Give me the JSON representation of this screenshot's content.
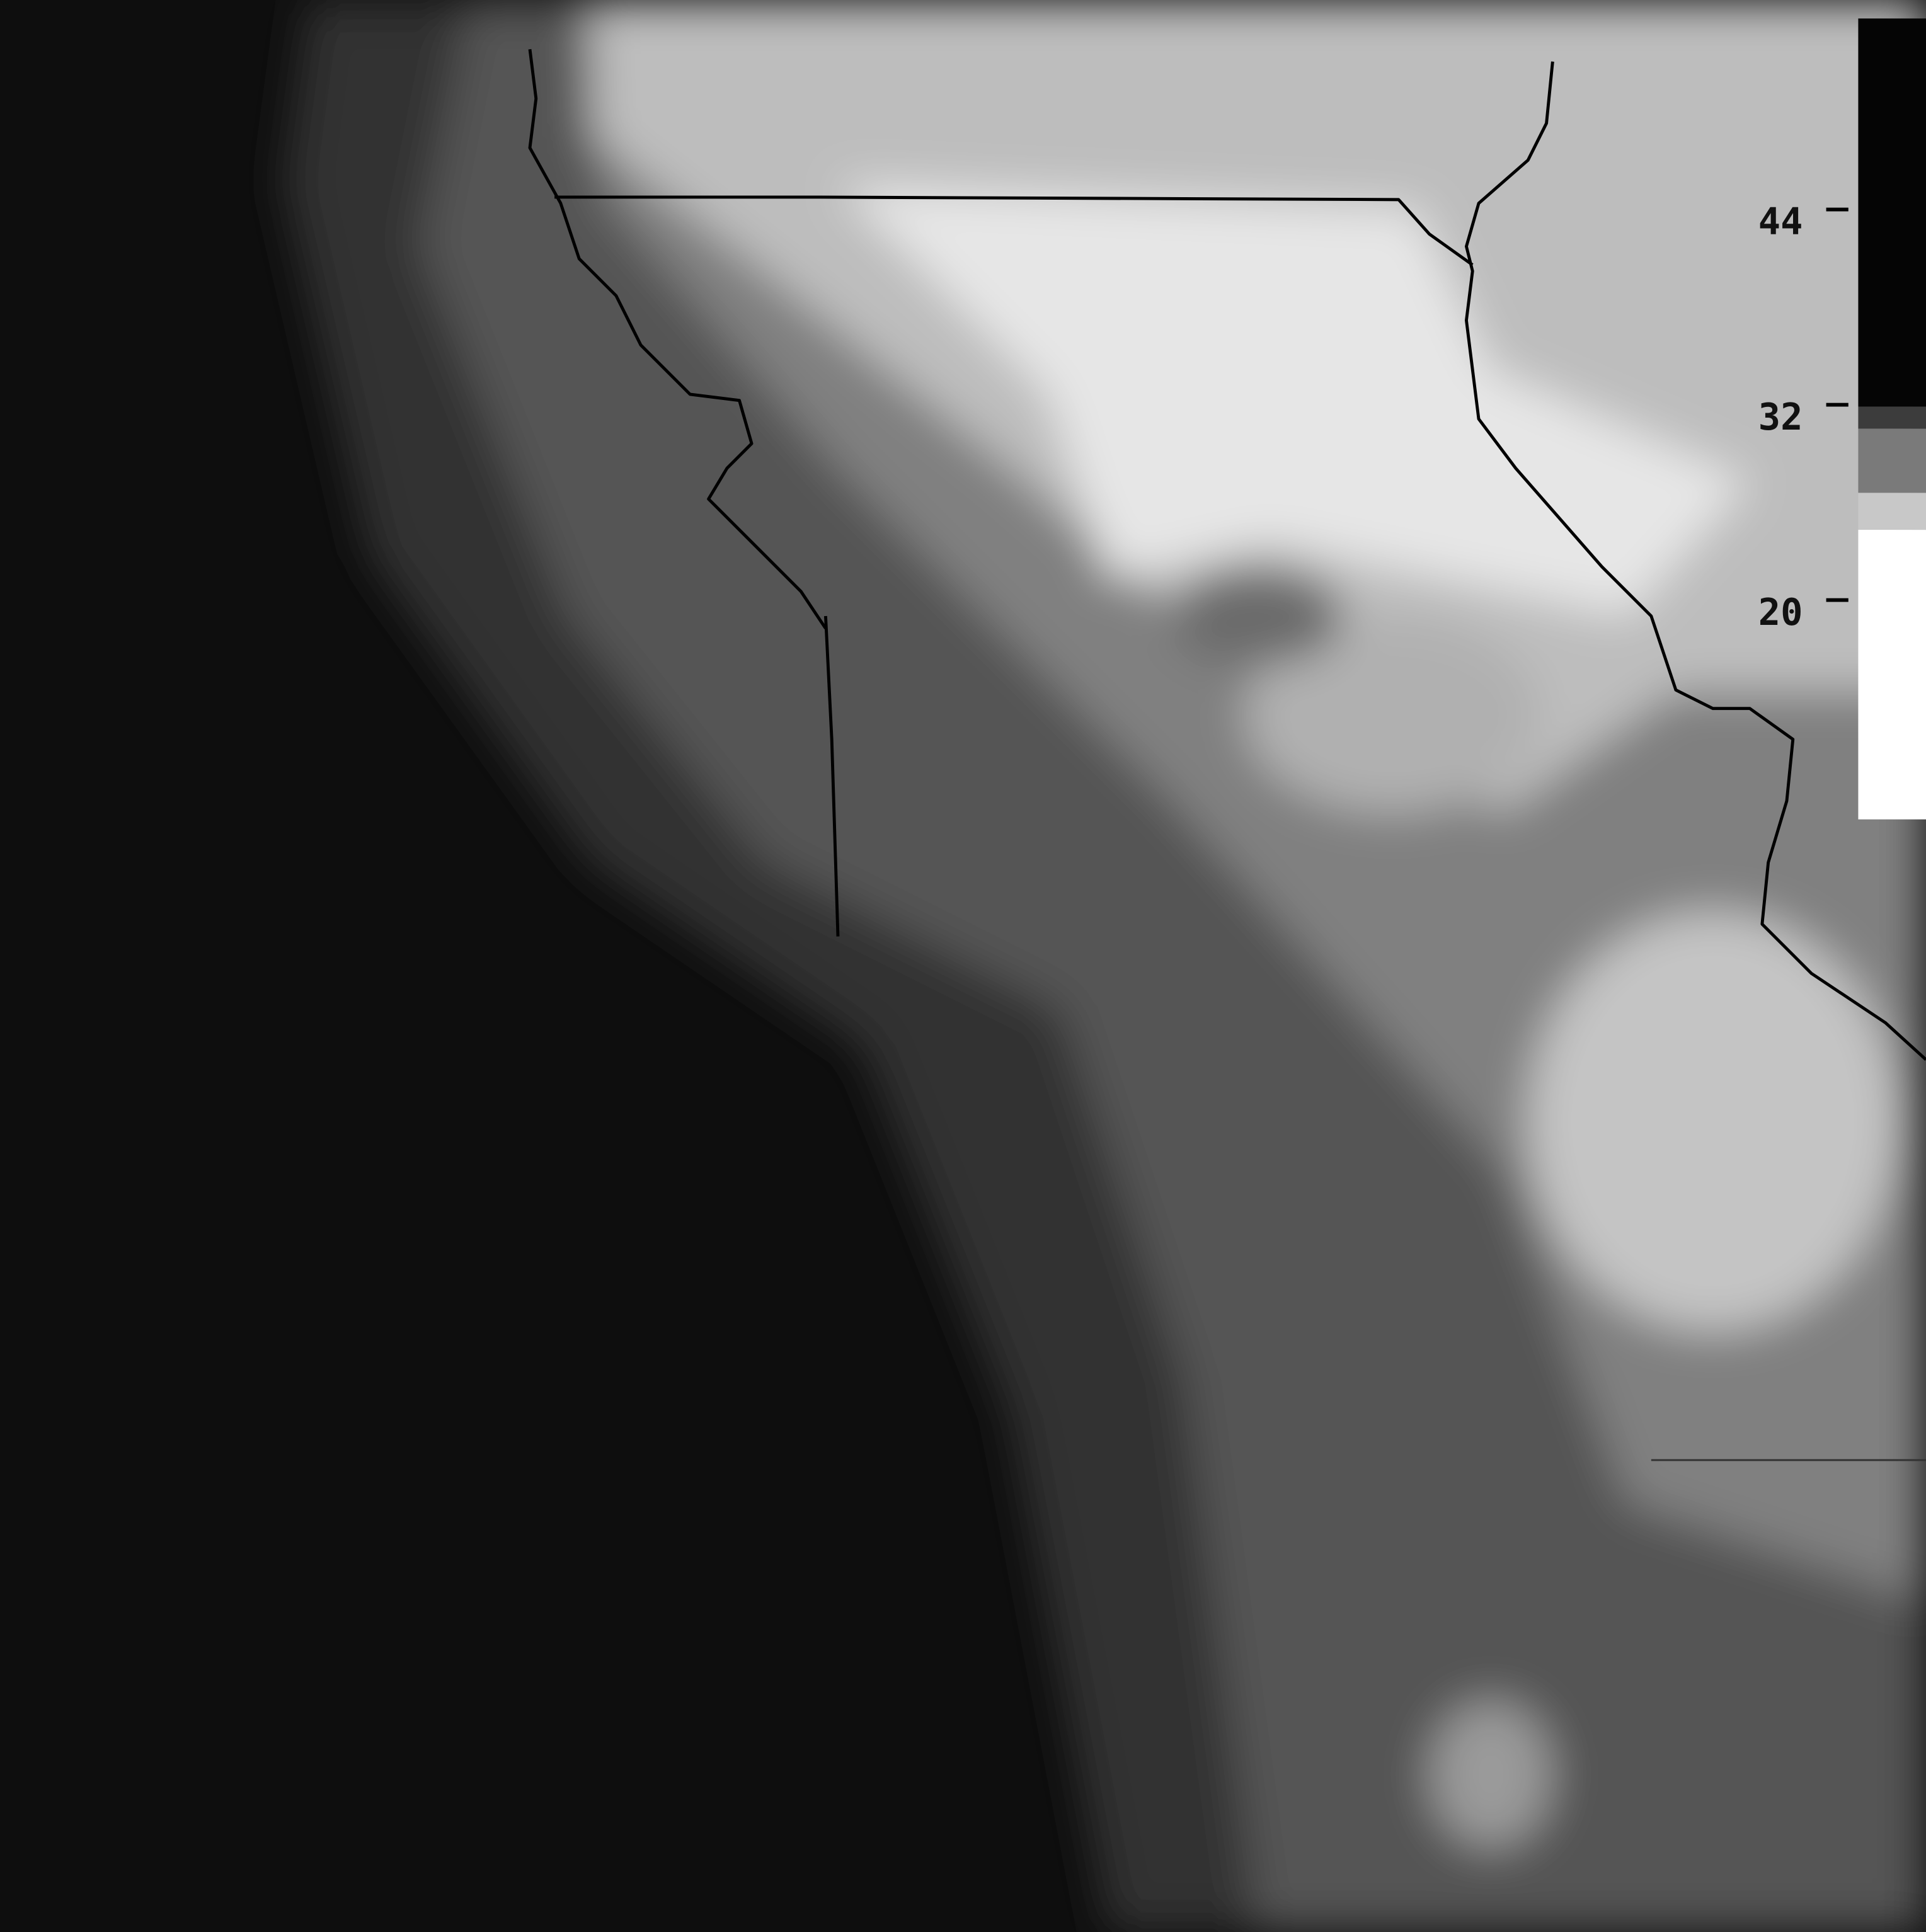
{
  "legend": {
    "ticks": [
      44,
      32,
      20
    ]
  }
}
